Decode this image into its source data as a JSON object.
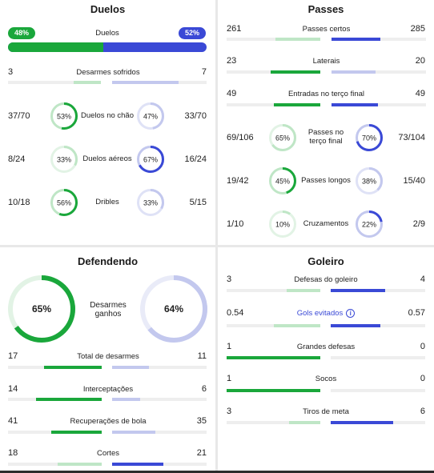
{
  "colors": {
    "green": "#1aa73b",
    "green_light": "#bfe6c6",
    "blue": "#3a49d6",
    "blue_light": "#c3c8ee",
    "track": "#eeeeee"
  },
  "duelos": {
    "title": "Duelos",
    "left_pct": "48%",
    "right_pct": "52%",
    "center_label": "Duelos",
    "desarmes": {
      "label": "Desarmes sofridos",
      "left": "3",
      "right": "7"
    },
    "rings": [
      {
        "label": "Duelos no chão",
        "left": "37/70",
        "right": "33/70",
        "lpct": "53%",
        "rpct": "47%",
        "lval": 0.53,
        "rval": 0.47
      },
      {
        "label": "Duelos aéreos",
        "left": "8/24",
        "right": "16/24",
        "lpct": "33%",
        "rpct": "67%",
        "lval": 0.33,
        "rval": 0.67
      },
      {
        "label": "Dribles",
        "left": "10/18",
        "right": "5/15",
        "lpct": "56%",
        "rpct": "33%",
        "lval": 0.56,
        "rval": 0.33
      }
    ]
  },
  "passes": {
    "title": "Passes",
    "bars": [
      {
        "label": "Passes certos",
        "left": "261",
        "right": "285"
      },
      {
        "label": "Laterais",
        "left": "23",
        "right": "20"
      },
      {
        "label": "Entradas no terço final",
        "left": "49",
        "right": "49"
      }
    ],
    "rings": [
      {
        "label": "Passes no terço final",
        "left": "69/106",
        "right": "73/104",
        "lpct": "65%",
        "rpct": "70%",
        "lval": 0.65,
        "rval": 0.7
      },
      {
        "label": "Passes longos",
        "left": "19/42",
        "right": "15/40",
        "lpct": "45%",
        "rpct": "38%",
        "lval": 0.45,
        "rval": 0.38
      },
      {
        "label": "Cruzamentos",
        "left": "1/10",
        "right": "2/9",
        "lpct": "10%",
        "rpct": "22%",
        "lval": 0.1,
        "rval": 0.22
      }
    ]
  },
  "defendendo": {
    "title": "Defendendo",
    "big_label": "Desarmes ganhos",
    "big_left": "65%",
    "big_right": "64%",
    "big_lval": 0.65,
    "big_rval": 0.64,
    "bars": [
      {
        "label": "Total de desarmes",
        "left": "17",
        "right": "11"
      },
      {
        "label": "Interceptações",
        "left": "14",
        "right": "6"
      },
      {
        "label": "Recuperações de bola",
        "left": "41",
        "right": "35"
      },
      {
        "label": "Cortes",
        "left": "18",
        "right": "21"
      }
    ]
  },
  "goleiro": {
    "title": "Goleiro",
    "bars": [
      {
        "label": "Defesas do goleiro",
        "left": "3",
        "right": "4"
      },
      {
        "label": "Gols evitados",
        "left": "0.54",
        "right": "0.57"
      },
      {
        "label": "Grandes defesas",
        "left": "1",
        "right": "0"
      },
      {
        "label": "Socos",
        "left": "1",
        "right": "0"
      },
      {
        "label": "Tiros de meta",
        "left": "3",
        "right": "6"
      }
    ]
  }
}
